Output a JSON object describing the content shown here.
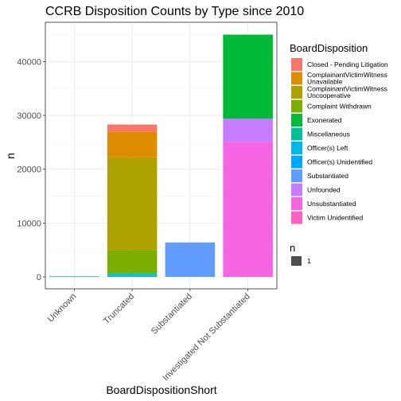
{
  "chart_data": {
    "type": "bar",
    "stacked": true,
    "title": "CCRB Disposition Counts by Type since 2010",
    "xlabel": "BoardDispositionShort",
    "ylabel": "n",
    "ylim": [
      0,
      47300
    ],
    "yticks": [
      0,
      10000,
      20000,
      30000,
      40000
    ],
    "grid": true,
    "legend_position": "right",
    "categories": [
      "Unknown",
      "Truncated",
      "Substantiated",
      "Investigated Not Substantiated"
    ],
    "legend_title": "BoardDisposition",
    "series": [
      {
        "name": "Victim Unidentified",
        "color": "#FF61C3",
        "values": [
          0,
          0,
          0,
          0
        ]
      },
      {
        "name": "Unsubstantiated",
        "color": "#F564E3",
        "values": [
          0,
          0,
          0,
          25100
        ]
      },
      {
        "name": "Unfounded",
        "color": "#C77CFF",
        "values": [
          0,
          0,
          0,
          4300
        ]
      },
      {
        "name": "Substantiated",
        "color": "#619CFF",
        "values": [
          0,
          0,
          6400,
          0
        ]
      },
      {
        "name": "Officer(s) Unidentified",
        "color": "#00A9FF",
        "values": [
          0,
          200,
          0,
          0
        ]
      },
      {
        "name": "Officer(s) Left",
        "color": "#00B8E7",
        "values": [
          0,
          200,
          0,
          0
        ]
      },
      {
        "name": "Miscellaneous",
        "color": "#00C19A",
        "values": [
          100,
          300,
          0,
          0
        ]
      },
      {
        "name": "Exonerated",
        "color": "#00BA38",
        "values": [
          0,
          0,
          0,
          15600
        ]
      },
      {
        "name": "Complaint Withdrawn",
        "color": "#7CAE00",
        "values": [
          0,
          4300,
          0,
          0
        ]
      },
      {
        "name": "ComplainantVictimWitness Uncooperative",
        "color": "#AEA200",
        "values": [
          0,
          17200,
          0,
          0
        ]
      },
      {
        "name": "ComplainantVictimWitness Unavailable",
        "color": "#DE8C00",
        "values": [
          0,
          4800,
          0,
          0
        ]
      },
      {
        "name": "Closed - Pending Litigation",
        "color": "#F8766D",
        "values": [
          0,
          1300,
          0,
          0
        ]
      }
    ],
    "legend_order": [
      "Closed - Pending Litigation",
      "ComplainantVictimWitness Unavailable",
      "ComplainantVictimWitness Uncooperative",
      "Complaint Withdrawn",
      "Exonerated",
      "Miscellaneous",
      "Officer(s) Left",
      "Officer(s) Unidentified",
      "Substantiated",
      "Unfounded",
      "Unsubstantiated",
      "Victim Unidentified"
    ],
    "size_legend": {
      "title": "n",
      "label": "1",
      "color": "#4d4d4d"
    }
  }
}
